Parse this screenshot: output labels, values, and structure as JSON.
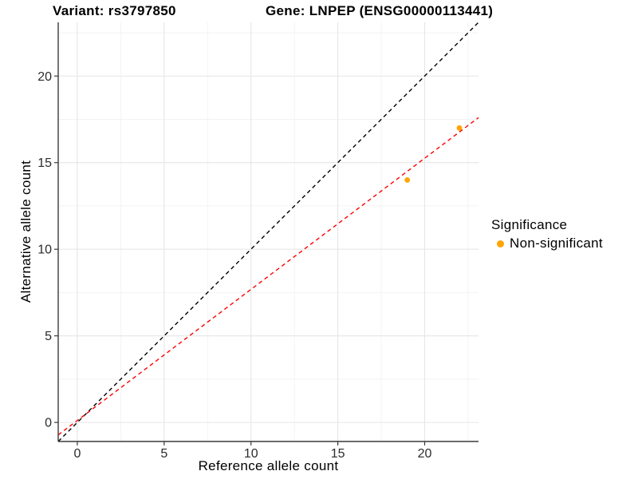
{
  "chart_data": {
    "type": "scatter",
    "title_variant": "Variant: rs3797850",
    "title_gene": "Gene: LNPEP (ENSG00000113441)",
    "xlabel": "Reference allele count",
    "ylabel": "Alternative allele count",
    "xlim": [
      -1.1,
      23.1
    ],
    "ylim": [
      -1.1,
      23.1
    ],
    "x_major_ticks": [
      0,
      5,
      10,
      15,
      20
    ],
    "y_major_ticks": [
      0,
      5,
      10,
      15,
      20
    ],
    "x_minor_ticks": [
      2.5,
      7.5,
      12.5,
      17.5,
      22.5
    ],
    "y_minor_ticks": [
      2.5,
      7.5,
      12.5,
      17.5,
      22.5
    ],
    "grid": true,
    "background": "#ffffff",
    "grid_major_color": "#e6e6e6",
    "grid_minor_color": "#f2f2f2",
    "axis_color": "#3a3a3a",
    "tick_label_color": "#2b2b2b",
    "points": {
      "series": "Non-significant",
      "color": "#FFA500",
      "data": [
        {
          "x": 19,
          "y": 14
        },
        {
          "x": 22,
          "y": 17
        }
      ]
    },
    "lines": [
      {
        "name": "identity-line",
        "color": "#000000",
        "style": "dashed",
        "x1": -1.1,
        "y1": -1.1,
        "x2": 23.1,
        "y2": 23.1
      },
      {
        "name": "fit-line",
        "color": "#FF0000",
        "style": "dashed",
        "x1": -1.1,
        "y1": -0.72,
        "x2": 23.1,
        "y2": 17.6
      }
    ],
    "legend": {
      "position": "right",
      "title": "Significance",
      "items": [
        {
          "label": "Non-significant",
          "color": "#FFA500",
          "marker": "circle"
        }
      ]
    }
  }
}
